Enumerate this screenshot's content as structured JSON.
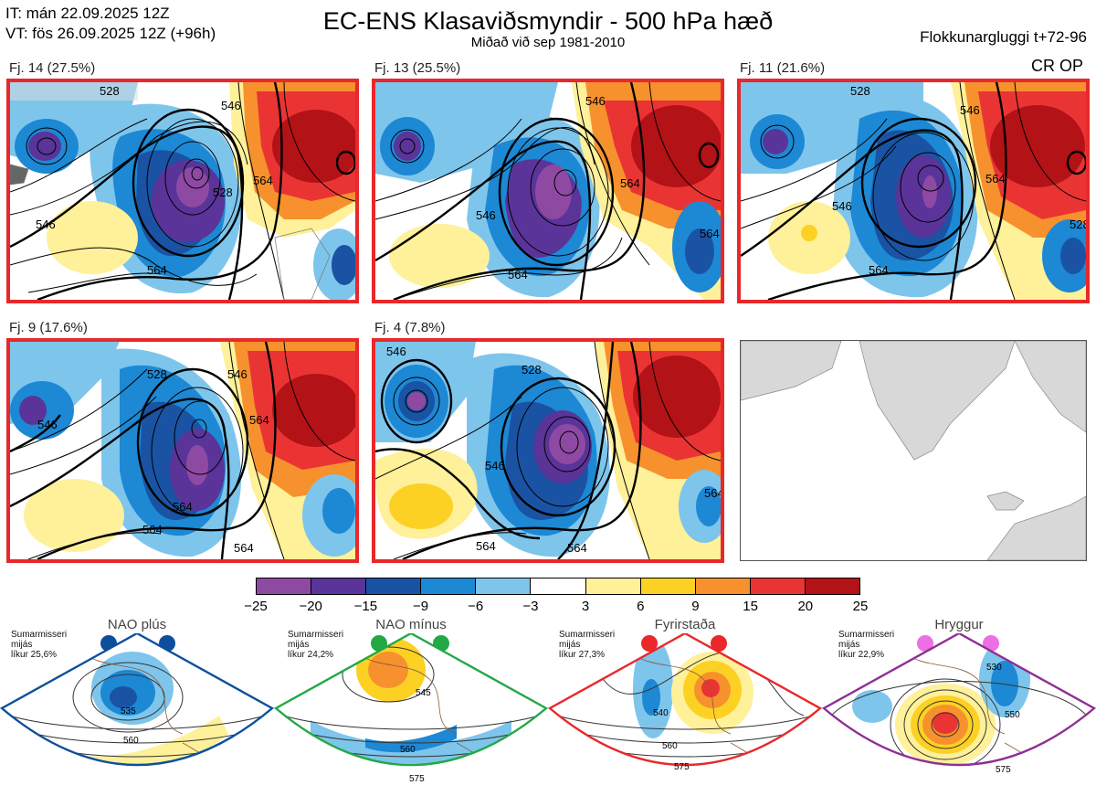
{
  "header": {
    "it": "IT: mán 22.09.2025 12Z",
    "vt": "VT: fös 26.09.2025 12Z  (+96h)",
    "title": "EC-ENS Klasaviðsmyndir - 500 hPa hæð",
    "subtitle": "Miðað við sep 1981-2010",
    "window": "Flokkunargluggi t+72-96",
    "cr_op": "CR OP"
  },
  "panels": [
    {
      "label": "Fj. 14 (27.5%)",
      "contours": [
        "528",
        "546",
        "564",
        "546",
        "564",
        "528"
      ]
    },
    {
      "label": "Fj. 13 (25.5%)",
      "contours": [
        "546",
        "564",
        "546",
        "564",
        "564"
      ]
    },
    {
      "label": "Fj. 11 (21.6%)",
      "contours": [
        "528",
        "546",
        "564",
        "546",
        "564",
        "528"
      ]
    },
    {
      "label": "Fj. 9 (17.6%)",
      "contours": [
        "528",
        "546",
        "564",
        "546",
        "564",
        "564",
        "564"
      ]
    },
    {
      "label": "Fj. 4 (7.8%)",
      "contours": [
        "546",
        "528",
        "546",
        "564",
        "564",
        "564"
      ]
    }
  ],
  "colorbar": {
    "ticks": [
      "−25",
      "−20",
      "−15",
      "−9",
      "−6",
      "−3",
      "3",
      "6",
      "9",
      "15",
      "20",
      "25"
    ],
    "colors": [
      "#8e4aa3",
      "#5a3499",
      "#1a53a3",
      "#1d88d4",
      "#7ec5ec",
      "#ffffff",
      "#fff09a",
      "#fcd124",
      "#f6912d",
      "#ea3434",
      "#b31217"
    ]
  },
  "regimes": [
    {
      "name": "NAO plús",
      "note": [
        "Sumarmisseri",
        "mijás",
        "líkur 25,6%"
      ],
      "color": "#0d4f9c",
      "contours": [
        "535",
        "560"
      ]
    },
    {
      "name": "NAO mínus",
      "note": [
        "Sumarmisseri",
        "mijás",
        "líkur 24,2%"
      ],
      "color": "#22a845",
      "contours": [
        "545",
        "560",
        "575"
      ]
    },
    {
      "name": "Fyrirstaða",
      "note": [
        "Sumarmisseri",
        "mijás",
        "líkur 27,3%"
      ],
      "color": "#e8282a",
      "contours": [
        "540",
        "560",
        "575"
      ]
    },
    {
      "name": "Hryggur",
      "note": [
        "Sumarmisseri",
        "mijás",
        "líkur 22,9%"
      ],
      "color": "#8e2f95",
      "contours": [
        "530",
        "550",
        "575"
      ]
    }
  ]
}
